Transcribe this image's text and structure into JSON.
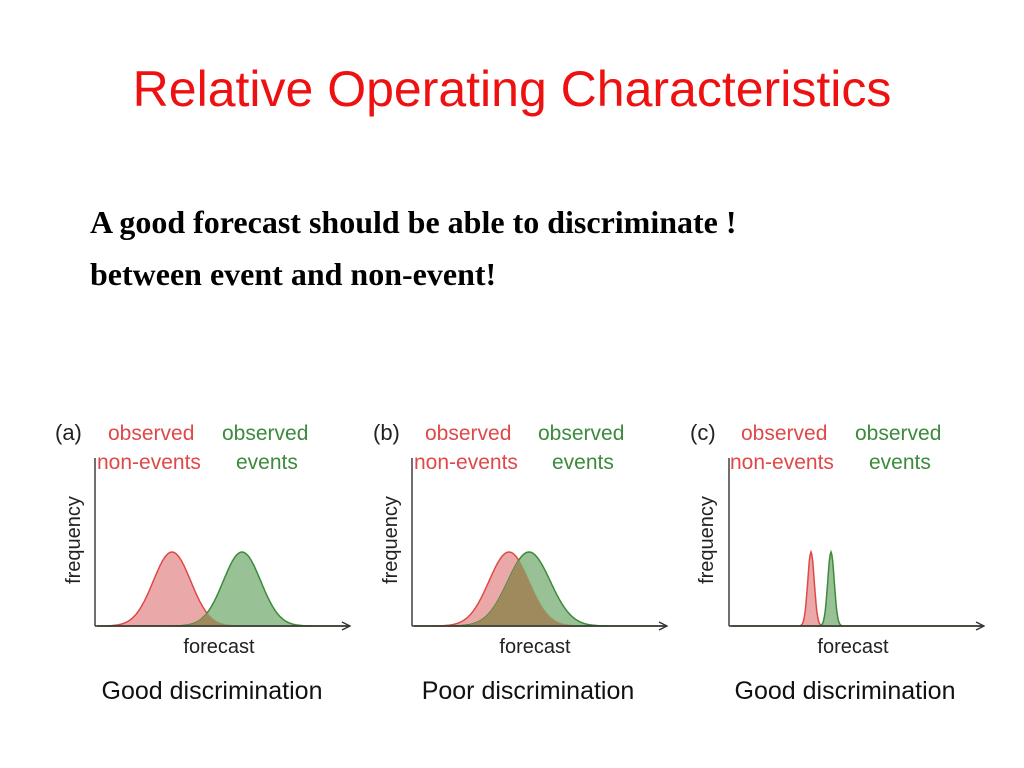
{
  "slide": {
    "title": "Relative Operating Characteristics",
    "body_lines": [
      "A good forecast should be able to discriminate !",
      "between event and non-event!"
    ]
  },
  "colors": {
    "title": "#ee1111",
    "non_event": "#e04848",
    "non_event_fill": "#e69a99",
    "event": "#3c8a3c",
    "event_fill": "#86b784",
    "overlap_fill": "#9f8a5d"
  },
  "panels": [
    {
      "letter": "(a)",
      "non_event_label": [
        "observed",
        "non-events"
      ],
      "event_label": [
        "observed",
        "events"
      ],
      "ylabel": "frequency",
      "xlabel": "forecast",
      "caption": "Good discrimination",
      "non_event_mean": 0.3,
      "non_event_sd": 0.075,
      "event_mean": 0.58,
      "event_sd": 0.075
    },
    {
      "letter": "(b)",
      "non_event_label": [
        "observed",
        "non-events"
      ],
      "event_label": [
        "observed",
        "events"
      ],
      "ylabel": "frequency",
      "xlabel": "forecast",
      "caption": "Poor discrimination",
      "non_event_mean": 0.38,
      "non_event_sd": 0.08,
      "event_mean": 0.46,
      "event_sd": 0.085
    },
    {
      "letter": "(c)",
      "non_event_label": [
        "observed",
        "non-events"
      ],
      "event_label": [
        "observed",
        "events"
      ],
      "ylabel": "frequency",
      "xlabel": "forecast",
      "caption": "Good discrimination",
      "non_event_mean": 0.32,
      "non_event_sd": 0.013,
      "event_mean": 0.4,
      "event_sd": 0.013
    }
  ]
}
